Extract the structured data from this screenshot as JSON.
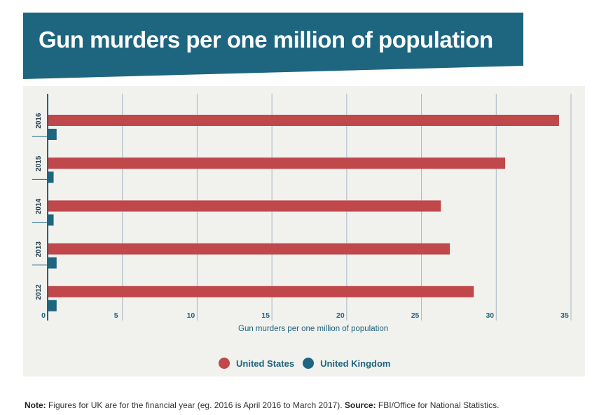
{
  "title": "Gun murders per one million of population",
  "colors": {
    "banner": "#1e6580",
    "us": "#c0474a",
    "uk": "#1e6580",
    "axis": "#1e6580",
    "panel": "#f1f1ee"
  },
  "chart_data": {
    "type": "bar",
    "orientation": "horizontal",
    "categories": [
      "2016",
      "2015",
      "2014",
      "2013",
      "2012"
    ],
    "series": [
      {
        "name": "United States",
        "values": [
          34.2,
          30.6,
          26.3,
          26.9,
          28.5
        ]
      },
      {
        "name": "United Kingdom",
        "values": [
          0.6,
          0.4,
          0.4,
          0.6,
          0.6
        ]
      }
    ],
    "xlabel": "Gun murders per one million of population",
    "ylabel": "",
    "xlim": [
      0,
      35
    ],
    "xticks": [
      "0",
      "5",
      "10",
      "15",
      "20",
      "25",
      "30",
      "35"
    ],
    "grid": true,
    "legend": "bottom-center"
  },
  "note": {
    "label": "Note:",
    "text": " Figures for UK are for the financial year (eg. 2016 is April 2016 to March 2017). ",
    "source_label": "Source:",
    "source_text": " FBI/Office for National Statistics."
  }
}
